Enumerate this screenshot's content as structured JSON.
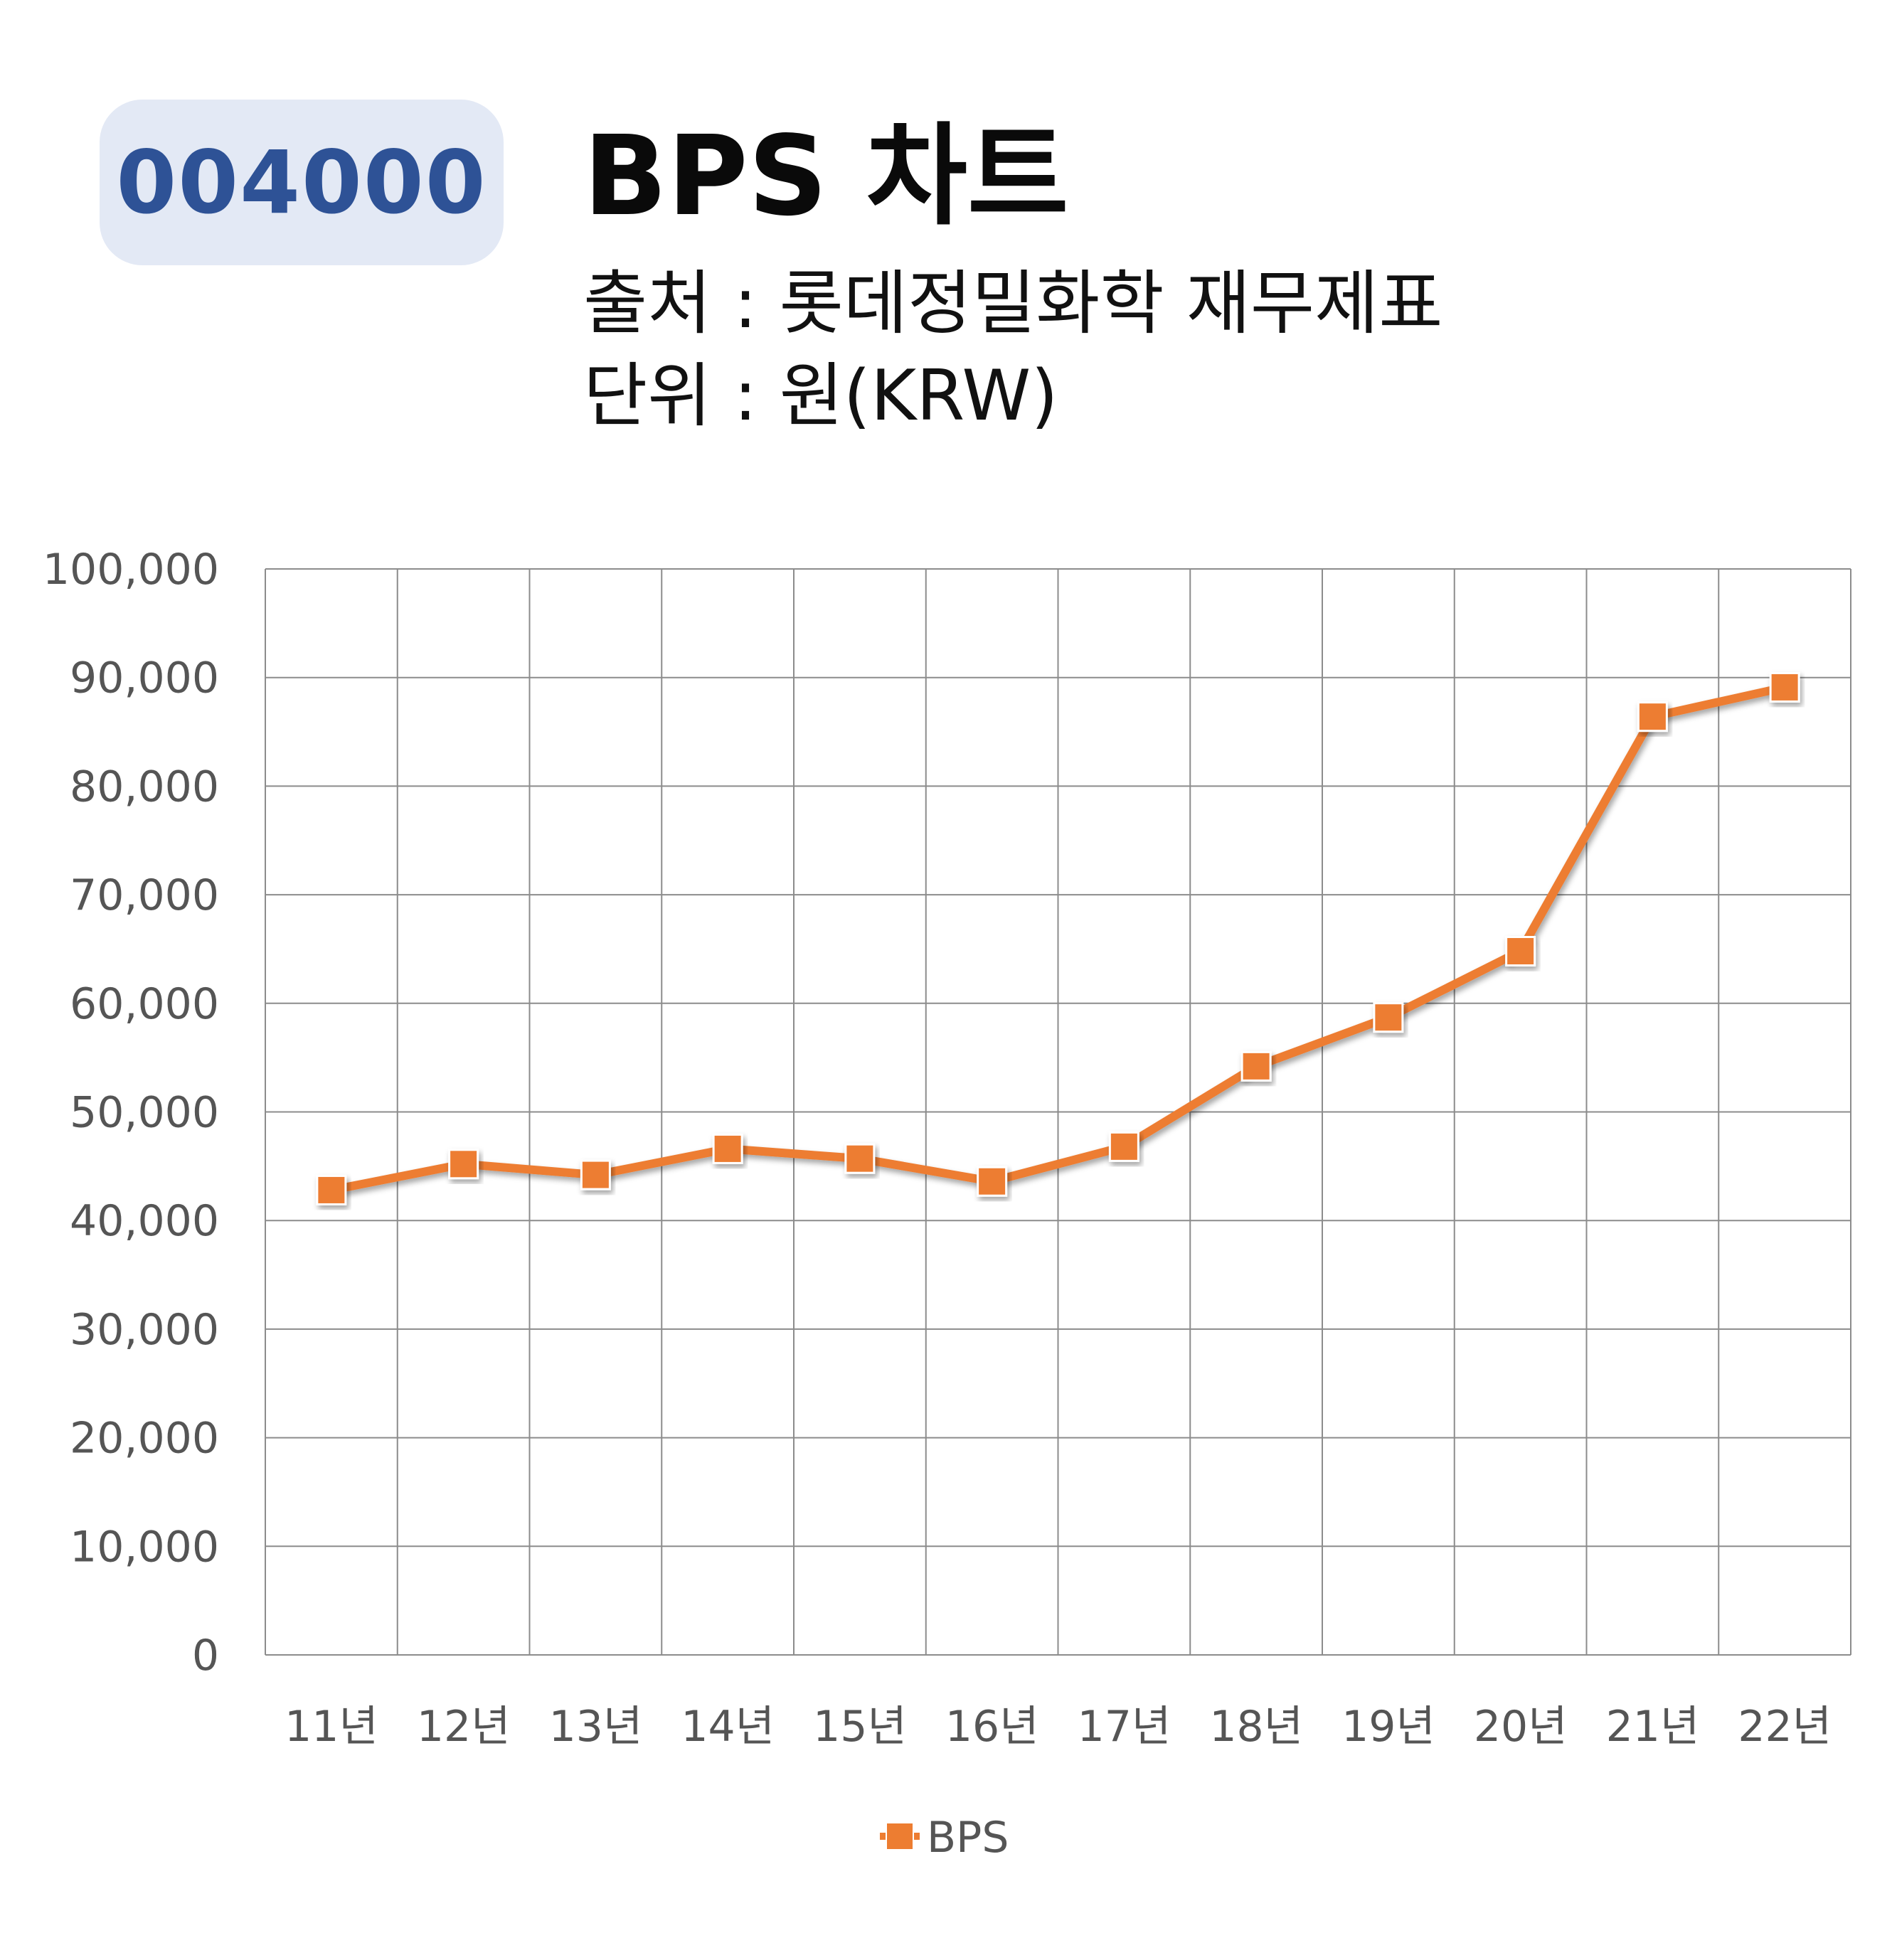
{
  "header": {
    "code": "004000",
    "title": "BPS 차트",
    "source": "출처 : 롯데정밀화학 재무제표",
    "unit": "단위 : 원(KRW)"
  },
  "colors": {
    "badge_bg": "#e3e9f5",
    "badge_text": "#2e5296",
    "series": "#ed7d31",
    "grid": "#8c8c8c",
    "tick_text": "#555555"
  },
  "chart_data": {
    "type": "line",
    "categories": [
      "11년",
      "12년",
      "13년",
      "14년",
      "15년",
      "16년",
      "17년",
      "18년",
      "19년",
      "20년",
      "21년",
      "22년"
    ],
    "series": [
      {
        "name": "BPS",
        "values": [
          42800,
          45200,
          44200,
          46600,
          45700,
          43600,
          46800,
          54200,
          58700,
          64800,
          86400,
          89100
        ],
        "color": "#ed7d31",
        "marker": "square"
      }
    ],
    "ylim": [
      0,
      100000
    ],
    "yticks": [
      "0",
      "10,000",
      "20,000",
      "30,000",
      "40,000",
      "50,000",
      "60,000",
      "70,000",
      "80,000",
      "90,000",
      "100,000"
    ],
    "grid": true,
    "legend": "bottom"
  }
}
